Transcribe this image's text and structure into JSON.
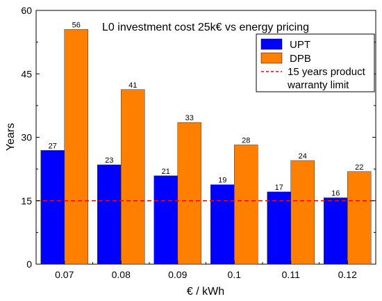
{
  "chart_data": {
    "type": "bar",
    "title": "L0 investment cost 25k€ vs energy pricing",
    "xlabel": "€ / kWh",
    "ylabel": "Years",
    "categories": [
      "0.07",
      "0.08",
      "0.09",
      "0.1",
      "0.11",
      "0.12"
    ],
    "series": [
      {
        "name": "UPT",
        "values": [
          27,
          23,
          21,
          19,
          17,
          16
        ],
        "labels": [
          "27",
          "23",
          "21",
          "19",
          "17",
          "16"
        ],
        "actual": [
          26.9,
          23.5,
          20.9,
          18.8,
          17.1,
          15.7
        ],
        "color": "#0000ff"
      },
      {
        "name": "DPB",
        "values": [
          56,
          41,
          33,
          28,
          24,
          22
        ],
        "labels": [
          "56",
          "41",
          "33",
          "28",
          "24",
          "22"
        ],
        "actual": [
          55.5,
          41.3,
          33.5,
          28.2,
          24.5,
          21.9
        ],
        "color": "#ff8000"
      }
    ],
    "reference_line": {
      "name": "15 years product warranty limit",
      "value": 15,
      "color": "#ff0000",
      "style": "dashed"
    },
    "ylim": [
      0,
      60
    ],
    "yticks": [
      "0",
      "15",
      "30",
      "45",
      "60"
    ],
    "grid": false,
    "legend_position": "top-right"
  }
}
